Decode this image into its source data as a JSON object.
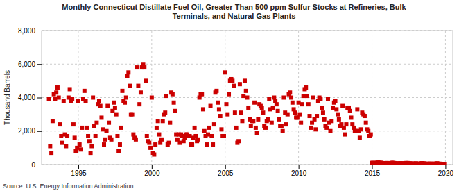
{
  "chart_data": {
    "type": "scatter",
    "title": "Monthly Connecticut Distillate Fuel Oil, Greater Than 500 ppm Sulfur Stocks at Refineries, Bulk\nTerminals, and Natural Gas Plants",
    "ylabel": "Thousand Barrels",
    "annotations": [
      "Source: U.S. Energy Information Administration"
    ],
    "color": "#cc0000",
    "marker": "square",
    "grid": true,
    "xlim": [
      1992.5,
      2020.5
    ],
    "xticks": [
      1995,
      2000,
      2005,
      2010,
      2015,
      2020
    ],
    "ylim": [
      0,
      8000
    ],
    "yticks": [
      0,
      {
        "value": 2000,
        "label": "2,000"
      },
      {
        "value": 4000,
        "label": "4,000"
      },
      {
        "value": 6000,
        "label": "6,000"
      },
      {
        "value": 8000,
        "label": "8,000"
      }
    ],
    "x": [
      1993.0,
      1993.083,
      1993.167,
      1993.25,
      1993.333,
      1993.417,
      1993.5,
      1993.583,
      1993.667,
      1993.75,
      1993.833,
      1993.917,
      1994.0,
      1994.083,
      1994.167,
      1994.25,
      1994.333,
      1994.417,
      1994.5,
      1994.583,
      1994.667,
      1994.75,
      1994.833,
      1994.917,
      1995.0,
      1995.083,
      1995.167,
      1995.25,
      1995.333,
      1995.417,
      1995.5,
      1995.583,
      1995.667,
      1995.75,
      1995.833,
      1995.917,
      1996.0,
      1996.083,
      1996.167,
      1996.25,
      1996.333,
      1996.417,
      1996.5,
      1996.583,
      1996.667,
      1996.75,
      1996.833,
      1996.917,
      1997.0,
      1997.083,
      1997.167,
      1997.25,
      1997.333,
      1997.417,
      1997.5,
      1997.583,
      1997.667,
      1997.75,
      1997.833,
      1997.917,
      1998.0,
      1998.083,
      1998.167,
      1998.25,
      1998.333,
      1998.417,
      1998.5,
      1998.583,
      1998.667,
      1998.75,
      1998.833,
      1998.917,
      1999.0,
      1999.083,
      1999.167,
      1999.25,
      1999.333,
      1999.417,
      1999.5,
      1999.583,
      1999.667,
      1999.75,
      1999.833,
      1999.917,
      2000.0,
      2000.083,
      2000.167,
      2000.25,
      2000.333,
      2000.417,
      2000.5,
      2000.583,
      2000.667,
      2000.75,
      2000.833,
      2000.917,
      2001.0,
      2001.083,
      2001.167,
      2001.25,
      2001.333,
      2001.417,
      2001.5,
      2001.583,
      2001.667,
      2001.75,
      2001.833,
      2001.917,
      2002.0,
      2002.083,
      2002.167,
      2002.25,
      2002.333,
      2002.417,
      2002.5,
      2002.583,
      2002.667,
      2002.75,
      2002.833,
      2002.917,
      2003.0,
      2003.083,
      2003.167,
      2003.25,
      2003.333,
      2003.417,
      2003.5,
      2003.583,
      2003.667,
      2003.75,
      2003.833,
      2003.917,
      2004.0,
      2004.083,
      2004.167,
      2004.25,
      2004.333,
      2004.417,
      2004.5,
      2004.583,
      2004.667,
      2004.75,
      2004.833,
      2004.917,
      2005.0,
      2005.083,
      2005.167,
      2005.25,
      2005.333,
      2005.417,
      2005.5,
      2005.583,
      2005.667,
      2005.75,
      2005.833,
      2005.917,
      2006.0,
      2006.083,
      2006.167,
      2006.25,
      2006.333,
      2006.417,
      2006.5,
      2006.583,
      2006.667,
      2006.75,
      2006.833,
      2006.917,
      2007.0,
      2007.083,
      2007.167,
      2007.25,
      2007.333,
      2007.417,
      2007.5,
      2007.583,
      2007.667,
      2007.75,
      2007.833,
      2007.917,
      2008.0,
      2008.083,
      2008.167,
      2008.25,
      2008.333,
      2008.417,
      2008.5,
      2008.583,
      2008.667,
      2008.75,
      2008.833,
      2008.917,
      2009.0,
      2009.083,
      2009.167,
      2009.25,
      2009.333,
      2009.417,
      2009.5,
      2009.583,
      2009.667,
      2009.75,
      2009.833,
      2009.917,
      2010.0,
      2010.083,
      2010.167,
      2010.25,
      2010.333,
      2010.417,
      2010.5,
      2010.583,
      2010.667,
      2010.75,
      2010.833,
      2010.917,
      2011.0,
      2011.083,
      2011.167,
      2011.25,
      2011.333,
      2011.417,
      2011.5,
      2011.583,
      2011.667,
      2011.75,
      2011.833,
      2011.917,
      2012.0,
      2012.083,
      2012.167,
      2012.25,
      2012.333,
      2012.417,
      2012.5,
      2012.583,
      2012.667,
      2012.75,
      2012.833,
      2012.917,
      2013.0,
      2013.083,
      2013.167,
      2013.25,
      2013.333,
      2013.417,
      2013.5,
      2013.583,
      2013.667,
      2013.75,
      2013.833,
      2013.917,
      2014.0,
      2014.083,
      2014.167,
      2014.25,
      2014.333,
      2014.417,
      2014.5,
      2014.583,
      2014.667,
      2014.75,
      2014.833,
      2014.917,
      2015.0,
      2015.083,
      2015.167,
      2015.25,
      2015.333,
      2015.417,
      2015.5,
      2015.583,
      2015.667,
      2015.75,
      2015.833,
      2015.917,
      2016.0,
      2016.083,
      2016.167,
      2016.25,
      2016.333,
      2016.417,
      2016.5,
      2016.583,
      2016.667,
      2016.75,
      2016.833,
      2016.917,
      2017.0,
      2017.083,
      2017.167,
      2017.25,
      2017.333,
      2017.417,
      2017.5,
      2017.583,
      2017.667,
      2017.75,
      2017.833,
      2017.917,
      2018.0,
      2018.083,
      2018.167,
      2018.25,
      2018.333,
      2018.417,
      2018.5,
      2018.583,
      2018.667,
      2018.75,
      2018.833,
      2018.917,
      2019.0,
      2019.083,
      2019.167,
      2019.25,
      2019.333,
      2019.417,
      2019.5,
      2019.583,
      2019.667,
      2019.75,
      2019.833,
      2019.917
    ],
    "values": [
      3900,
      1100,
      700,
      2600,
      4200,
      3900,
      4300,
      4600,
      4000,
      2400,
      1700,
      1300,
      3800,
      1800,
      1100,
      1700,
      4000,
      4500,
      3800,
      3900,
      2400,
      1600,
      800,
      1000,
      3800,
      1200,
      900,
      2200,
      3900,
      4400,
      3800,
      2200,
      1700,
      1400,
      700,
      1100,
      4000,
      2300,
      1700,
      2500,
      3600,
      3800,
      3500,
      2800,
      2100,
      1200,
      1500,
      2000,
      3500,
      2500,
      1600,
      1500,
      3200,
      3700,
      3400,
      3000,
      1700,
      800,
      1200,
      2200,
      4400,
      3800,
      3700,
      4000,
      5300,
      5500,
      4700,
      3000,
      3000,
      1800,
      1600,
      1500,
      5800,
      4700,
      3600,
      4300,
      5800,
      6000,
      5800,
      5000,
      1700,
      1400,
      1300,
      1000,
      4000,
      700,
      600,
      1200,
      2200,
      2600,
      1800,
      1300,
      1500,
      2600,
      3000,
      3100,
      4100,
      1200,
      1300,
      2500,
      4300,
      4200,
      3700,
      3200,
      1800,
      1500,
      1800,
      1300,
      1800,
      1700,
      1400,
      1600,
      1800,
      1800,
      1700,
      1700,
      1200,
      1200,
      1600,
      2200,
      1700,
      1400,
      1500,
      4000,
      4200,
      4200,
      3300,
      2000,
      1700,
      1200,
      1800,
      2200,
      3500,
      1700,
      1200,
      2400,
      4300,
      4400,
      3700,
      3300,
      2900,
      2100,
      1700,
      1700,
      5500,
      3600,
      3000,
      4200,
      5000,
      5100,
      5000,
      4700,
      3100,
      2200,
      1300,
      1400,
      4800,
      3100,
      2600,
      4100,
      5000,
      4400,
      4000,
      3400,
      2700,
      2300,
      2600,
      2600,
      3700,
      2200,
      1900,
      2700,
      3600,
      3500,
      3400,
      3100,
      2300,
      2200,
      2600,
      2700,
      3900,
      3300,
      2500,
      3400,
      4000,
      3800,
      3600,
      3200,
      2700,
      2300,
      2300,
      2000,
      4000,
      3100,
      2400,
      3000,
      4200,
      4300,
      4000,
      3700,
      3300,
      3100,
      2800,
      2800,
      3700,
      3000,
      2500,
      3600,
      4100,
      4500,
      4600,
      4100,
      3600,
      2900,
      2200,
      2500,
      4000,
      2700,
      2100,
      2900,
      3800,
      4000,
      3900,
      3400,
      3100,
      2700,
      2300,
      2200,
      3900,
      2500,
      2000,
      2600,
      3400,
      3700,
      3800,
      3300,
      3000,
      2700,
      2300,
      2400,
      3500,
      2200,
      1800,
      2400,
      3400,
      3400,
      3200,
      2800,
      2400,
      2200,
      2000,
      2000,
      3300,
      2000,
      1600,
      2100,
      3100,
      3000,
      2900,
      2500,
      2100,
      2000,
      1700,
      1800,
      100,
      100,
      80,
      90,
      110,
      120,
      100,
      110,
      90,
      80,
      70,
      80,
      90,
      70,
      60,
      80,
      100,
      100,
      90,
      80,
      70,
      70,
      60,
      70,
      80,
      60,
      50,
      70,
      90,
      90,
      80,
      70,
      60,
      60,
      50,
      60,
      70,
      50,
      40,
      60,
      70,
      80,
      70,
      60,
      50,
      50,
      40,
      50,
      60,
      40,
      35,
      50,
      60,
      70,
      60,
      50,
      45,
      40,
      35,
      40
    ]
  }
}
